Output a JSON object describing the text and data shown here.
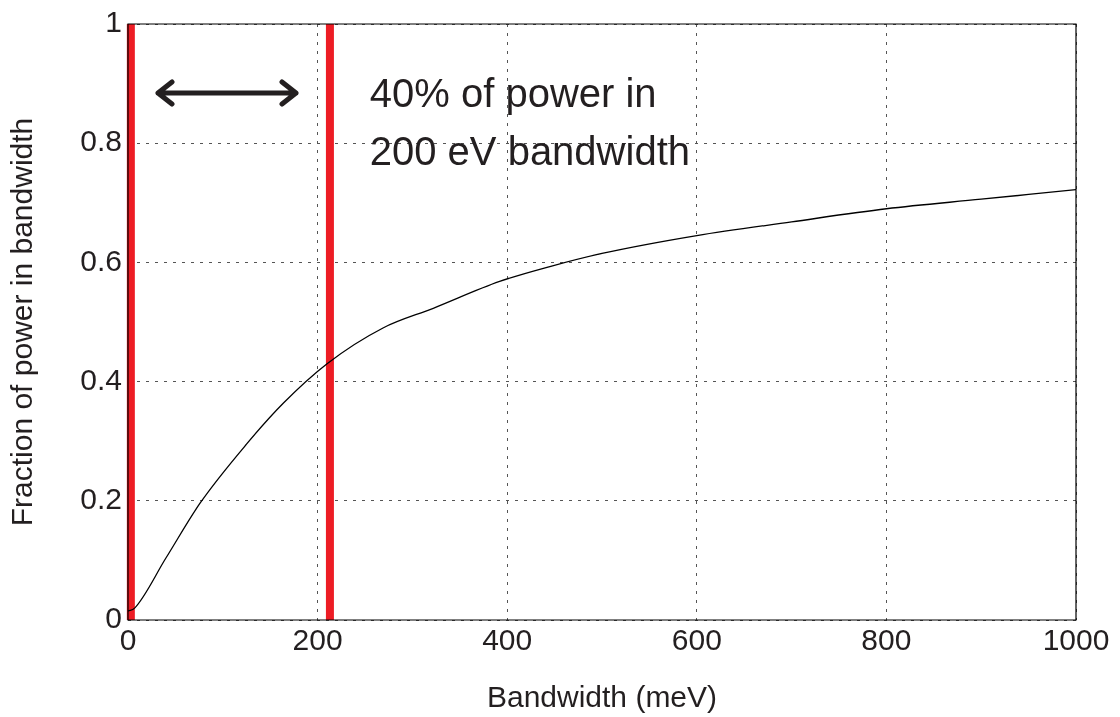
{
  "chart_data": {
    "type": "line",
    "xlabel": "Bandwidth (meV)",
    "ylabel": "Fraction of power in bandwidth",
    "x": [
      0,
      7,
      40,
      76,
      125,
      164,
      210,
      269,
      322,
      392,
      445,
      500,
      600,
      700,
      800,
      900,
      1000
    ],
    "series": [
      {
        "color": "#000000",
        "values": [
          0.015,
          0.02,
          0.104,
          0.196,
          0.295,
          0.364,
          0.43,
          0.49,
          0.523,
          0.568,
          0.593,
          0.615,
          0.645,
          0.668,
          0.69,
          0.706,
          0.722
        ]
      }
    ],
    "xlim": [
      0,
      1000
    ],
    "xticks": [
      0,
      200,
      400,
      600,
      800,
      1000
    ],
    "ylim": [
      0,
      1
    ],
    "yticks": [
      0,
      0.2,
      0.4,
      0.6,
      0.8,
      1
    ],
    "grid": true,
    "legend": false,
    "ref_lines": [
      {
        "axis": "x",
        "value": 3,
        "color": "#ed1c24"
      },
      {
        "axis": "x",
        "value": 213,
        "color": "#ed1c24"
      }
    ],
    "annotations": [
      "40% of power in\n200 eV bandwidth"
    ]
  }
}
